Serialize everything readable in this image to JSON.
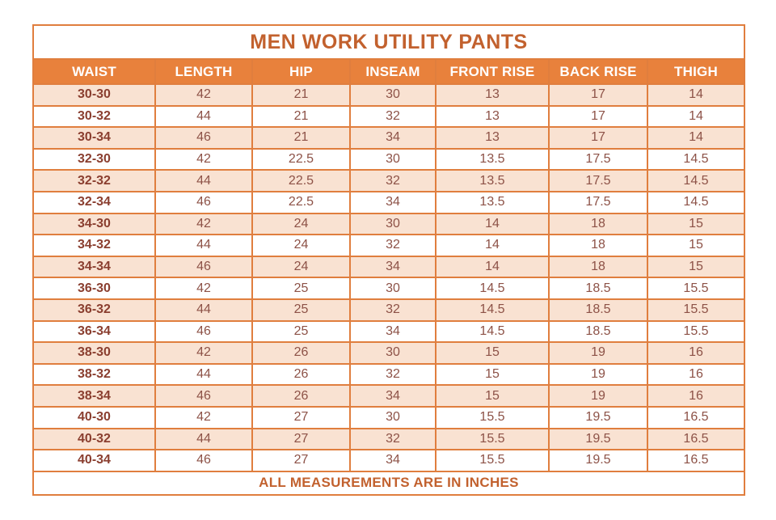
{
  "chart_data": {
    "type": "table",
    "title": "MEN WORK UTILITY PANTS",
    "columns": [
      "WAIST",
      "LENGTH",
      "HIP",
      "INSEAM",
      "FRONT RISE",
      "BACK RISE",
      "THIGH"
    ],
    "rows": [
      [
        "30-30",
        "42",
        "21",
        "30",
        "13",
        "17",
        "14"
      ],
      [
        "30-32",
        "44",
        "21",
        "32",
        "13",
        "17",
        "14"
      ],
      [
        "30-34",
        "46",
        "21",
        "34",
        "13",
        "17",
        "14"
      ],
      [
        "32-30",
        "42",
        "22.5",
        "30",
        "13.5",
        "17.5",
        "14.5"
      ],
      [
        "32-32",
        "44",
        "22.5",
        "32",
        "13.5",
        "17.5",
        "14.5"
      ],
      [
        "32-34",
        "46",
        "22.5",
        "34",
        "13.5",
        "17.5",
        "14.5"
      ],
      [
        "34-30",
        "42",
        "24",
        "30",
        "14",
        "18",
        "15"
      ],
      [
        "34-32",
        "44",
        "24",
        "32",
        "14",
        "18",
        "15"
      ],
      [
        "34-34",
        "46",
        "24",
        "34",
        "14",
        "18",
        "15"
      ],
      [
        "36-30",
        "42",
        "25",
        "30",
        "14.5",
        "18.5",
        "15.5"
      ],
      [
        "36-32",
        "44",
        "25",
        "32",
        "14.5",
        "18.5",
        "15.5"
      ],
      [
        "36-34",
        "46",
        "25",
        "34",
        "14.5",
        "18.5",
        "15.5"
      ],
      [
        "38-30",
        "42",
        "26",
        "30",
        "15",
        "19",
        "16"
      ],
      [
        "38-32",
        "44",
        "26",
        "32",
        "15",
        "19",
        "16"
      ],
      [
        "38-34",
        "46",
        "26",
        "34",
        "15",
        "19",
        "16"
      ],
      [
        "40-30",
        "42",
        "27",
        "30",
        "15.5",
        "19.5",
        "16.5"
      ],
      [
        "40-32",
        "44",
        "27",
        "32",
        "15.5",
        "19.5",
        "16.5"
      ],
      [
        "40-34",
        "46",
        "27",
        "34",
        "15.5",
        "19.5",
        "16.5"
      ]
    ],
    "footnote": "ALL MEASUREMENTS ARE IN INCHES",
    "units": "inches"
  },
  "colors": {
    "border": "#e07e3e",
    "header_bg": "#e8813c",
    "header_text": "#ffffff",
    "title_text": "#c2612e",
    "row_shade": "#f9e2d2",
    "row_white": "#ffffff",
    "size_text": "#8a3e2f",
    "value_text": "#8d5247",
    "footer_text": "#c2612e",
    "page_bg": "#ffffff"
  }
}
